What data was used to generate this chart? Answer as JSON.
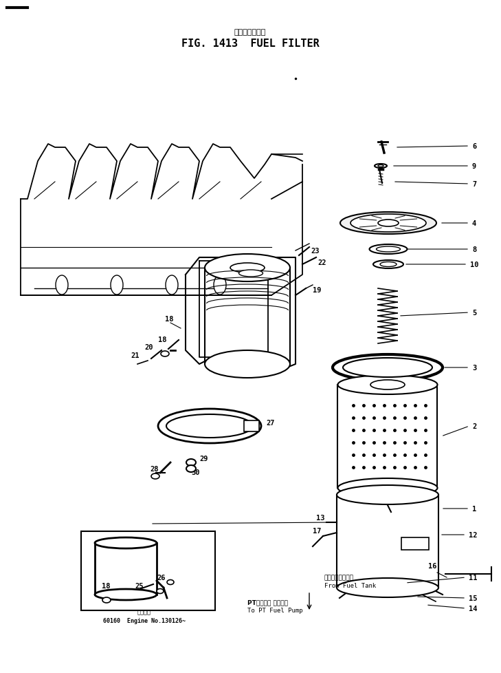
{
  "title_japanese": "フェルフィルタ",
  "title_english": "FIG. 1413  FUEL FILTER",
  "bg_color": "#ffffff",
  "line_color": "#000000",
  "fig_width": 7.29,
  "fig_height": 9.79,
  "dpi": 100,
  "bottom_text_line1": "適用号機",
  "bottom_text_line2": "60160  Engine No.130126~",
  "label_from_fuel_tank_jp": "フロータンクから",
  "label_from_fuel_tank_en": "From Fuel Tank",
  "label_to_pt_pump_jp": "PTフェルル ポンプへ",
  "label_to_pt_pump_en": "To PT Fuel Pump"
}
